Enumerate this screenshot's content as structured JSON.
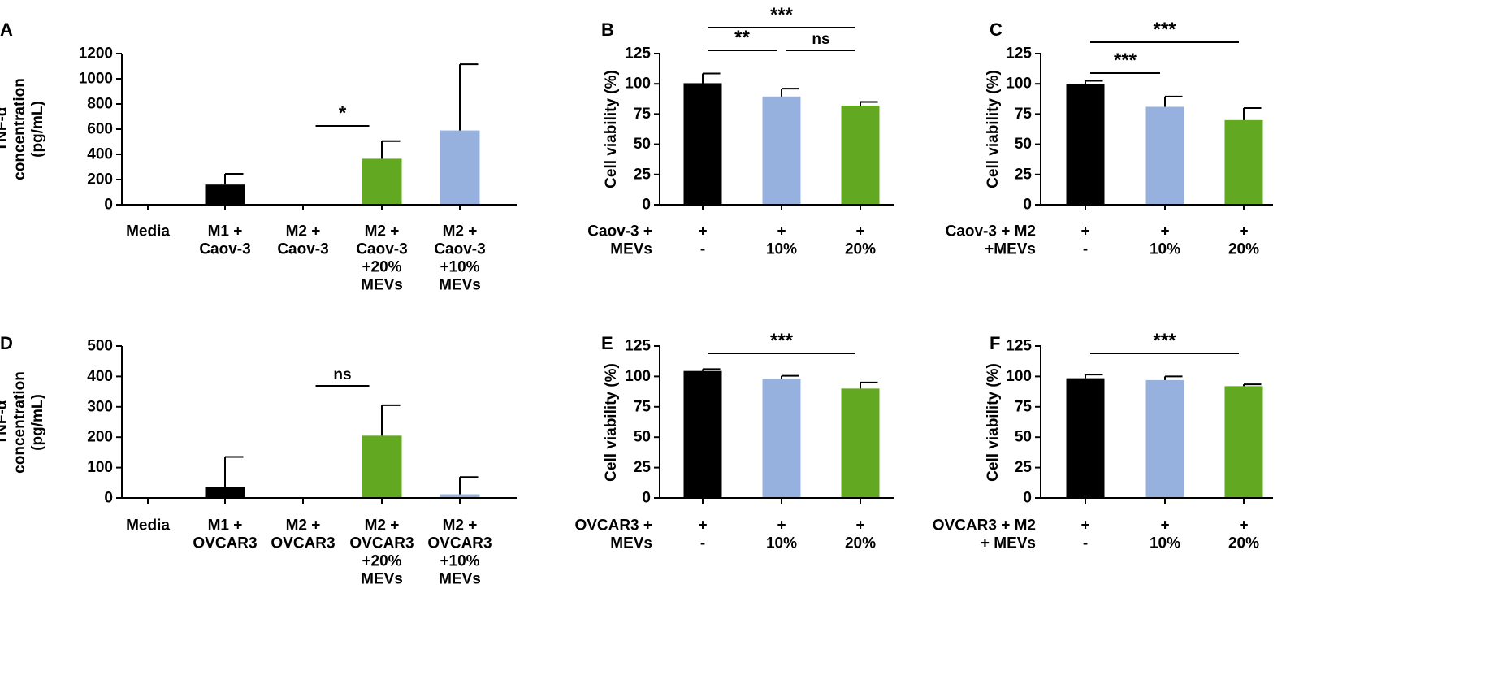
{
  "chart_data": [
    {
      "panel": "A",
      "type": "bar",
      "ylabel": [
        "TNF-α",
        "concentration",
        "(pg/mL)"
      ],
      "ylim": [
        0,
        1200
      ],
      "yticks": [
        0,
        200,
        400,
        600,
        800,
        1000,
        1200
      ],
      "categories": [
        [
          "Media"
        ],
        [
          "M1 +",
          "Caov-3"
        ],
        [
          "M2 +",
          "Caov-3"
        ],
        [
          "M2 +",
          "Caov-3",
          "+20%",
          "MEVs"
        ],
        [
          "M2 +",
          "Caov-3",
          "+10%",
          "MEVs"
        ]
      ],
      "values": [
        0,
        160,
        0,
        365,
        590
      ],
      "errors": [
        0,
        85,
        0,
        140,
        525
      ],
      "colors": [
        "#000000",
        "#000000",
        "#000000",
        "#62a821",
        "#97b1de"
      ],
      "significance": [
        {
          "from": 2,
          "to": 3,
          "label": "*"
        }
      ]
    },
    {
      "panel": "B",
      "type": "bar",
      "ylabel": [
        "Cell viability (%)"
      ],
      "ylim": [
        0,
        125
      ],
      "yticks": [
        0,
        25,
        50,
        75,
        100,
        125
      ],
      "row_labels": [
        "Caov-3 +",
        "MEVs"
      ],
      "categories": [
        [
          "+",
          "-"
        ],
        [
          "+",
          "10%"
        ],
        [
          "+",
          "20%"
        ]
      ],
      "values": [
        100.5,
        89.5,
        82
      ],
      "errors": [
        8,
        6.5,
        3
      ],
      "colors": [
        "#000000",
        "#97b1de",
        "#62a821"
      ],
      "significance": [
        {
          "from": 0,
          "to": 1,
          "label": "**"
        },
        {
          "from": 1,
          "to": 2,
          "label": "ns"
        },
        {
          "from": 0,
          "to": 2,
          "label": "***"
        }
      ]
    },
    {
      "panel": "C",
      "type": "bar",
      "ylabel": [
        "Cell viability (%)"
      ],
      "ylim": [
        0,
        125
      ],
      "yticks": [
        0,
        25,
        50,
        75,
        100,
        125
      ],
      "row_labels": [
        "Caov-3 + M2",
        "+MEVs"
      ],
      "categories": [
        [
          "+",
          "-"
        ],
        [
          "+",
          "10%"
        ],
        [
          "+",
          "20%"
        ]
      ],
      "values": [
        100,
        81,
        70
      ],
      "errors": [
        2.5,
        8.5,
        10
      ],
      "colors": [
        "#000000",
        "#97b1de",
        "#62a821"
      ],
      "significance": [
        {
          "from": 0,
          "to": 1,
          "label": "***"
        },
        {
          "from": 0,
          "to": 2,
          "label": "***"
        }
      ]
    },
    {
      "panel": "D",
      "type": "bar",
      "ylabel": [
        "TNF-α",
        "concentration",
        "(pg/mL)"
      ],
      "ylim": [
        0,
        500
      ],
      "yticks": [
        0,
        100,
        200,
        300,
        400,
        500
      ],
      "categories": [
        [
          "Media"
        ],
        [
          "M1 +",
          "OVCAR3"
        ],
        [
          "M2 +",
          "OVCAR3"
        ],
        [
          "M2 +",
          "OVCAR3",
          "+20%",
          "MEVs"
        ],
        [
          "M2 +",
          "OVCAR3",
          "+10%",
          "MEVs"
        ]
      ],
      "values": [
        0,
        35,
        0,
        205,
        12
      ],
      "errors": [
        0,
        100,
        0,
        100,
        57
      ],
      "colors": [
        "#000000",
        "#000000",
        "#000000",
        "#62a821",
        "#97b1de"
      ],
      "significance": [
        {
          "from": 2,
          "to": 3,
          "label": "ns"
        }
      ]
    },
    {
      "panel": "E",
      "type": "bar",
      "ylabel": [
        "Cell viability (%)"
      ],
      "ylim": [
        0,
        125
      ],
      "yticks": [
        0,
        25,
        50,
        75,
        100,
        125
      ],
      "row_labels": [
        "OVCAR3 +",
        "MEVs"
      ],
      "categories": [
        [
          "+",
          "-"
        ],
        [
          "+",
          "10%"
        ],
        [
          "+",
          "20%"
        ]
      ],
      "values": [
        104.5,
        98,
        90
      ],
      "errors": [
        1.5,
        2.5,
        5
      ],
      "colors": [
        "#000000",
        "#97b1de",
        "#62a821"
      ],
      "significance": [
        {
          "from": 0,
          "to": 2,
          "label": "***"
        }
      ]
    },
    {
      "panel": "F",
      "type": "bar",
      "ylabel": [
        "Cell viability (%)"
      ],
      "ylim": [
        0,
        125
      ],
      "yticks": [
        0,
        25,
        50,
        75,
        100,
        125
      ],
      "row_labels": [
        "OVCAR3 + M2",
        "+ MEVs"
      ],
      "categories": [
        [
          "+",
          "-"
        ],
        [
          "+",
          "10%"
        ],
        [
          "+",
          "20%"
        ]
      ],
      "values": [
        98.5,
        97,
        92
      ],
      "errors": [
        3,
        3,
        1.5
      ],
      "colors": [
        "#000000",
        "#97b1de",
        "#62a821"
      ],
      "significance": [
        {
          "from": 0,
          "to": 2,
          "label": "***"
        }
      ]
    }
  ]
}
